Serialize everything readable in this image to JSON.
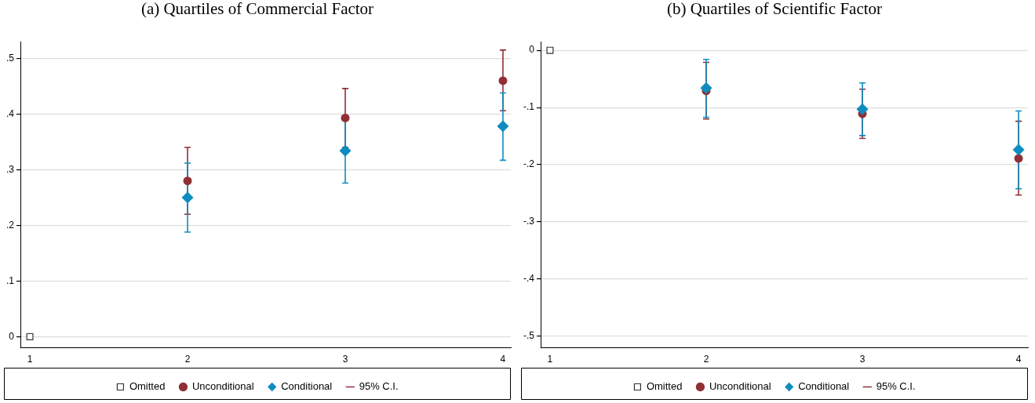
{
  "chart_data": [
    {
      "type": "scatter",
      "title": "(a) Quartiles of Commercial Factor",
      "xlim": [
        0.94,
        4.05
      ],
      "xticks": [
        1,
        2,
        3,
        4
      ],
      "ylim": [
        -0.02,
        0.53
      ],
      "yticks": [
        0,
        {
          "value": 0.1,
          "label": ".1"
        },
        {
          "value": 0.2,
          "label": ".2"
        },
        {
          "value": 0.3,
          "label": ".3"
        },
        {
          "value": 0.4,
          "label": ".4"
        },
        {
          "value": 0.5,
          "label": ".5"
        }
      ],
      "grid": "y",
      "legend": "bottom",
      "annotations": [
        "95% C.I."
      ],
      "series": [
        {
          "name": "Omitted",
          "color": "#333333",
          "marker": "square",
          "x": [
            1
          ],
          "values": [
            0
          ]
        },
        {
          "name": "Unconditional",
          "color": "#903036",
          "marker": "circle",
          "x": [
            2,
            3,
            4
          ],
          "values": [
            0.28,
            0.393,
            0.46
          ],
          "errors": [
            [
              0.22,
              0.34
            ],
            [
              0.34,
              0.446
            ],
            [
              0.406,
              0.515
            ]
          ]
        },
        {
          "name": "Conditional",
          "color": "#0f8cbf",
          "marker": "diamond",
          "x": [
            2,
            3,
            4
          ],
          "values": [
            0.25,
            0.334,
            0.378
          ],
          "errors": [
            [
              0.188,
              0.312
            ],
            [
              0.276,
              0.392
            ],
            [
              0.317,
              0.438
            ]
          ]
        }
      ]
    },
    {
      "type": "scatter",
      "title": "(b) Quartiles of Scientific Factor",
      "xlim": [
        0.94,
        4.06
      ],
      "xticks": [
        1,
        2,
        3,
        4
      ],
      "ylim": [
        -0.52,
        0.015
      ],
      "yticks": [
        0,
        {
          "value": -0.1,
          "label": "-.1"
        },
        {
          "value": -0.2,
          "label": "-.2"
        },
        {
          "value": -0.3,
          "label": "-.3"
        },
        {
          "value": -0.4,
          "label": "-.4"
        },
        {
          "value": -0.5,
          "label": "-.5"
        }
      ],
      "grid": "y",
      "legend": "bottom",
      "annotations": [
        "95% C.I."
      ],
      "series": [
        {
          "name": "Omitted",
          "color": "#333333",
          "marker": "square",
          "x": [
            1
          ],
          "values": [
            0
          ]
        },
        {
          "name": "Unconditional",
          "color": "#903036",
          "marker": "circle",
          "x": [
            2,
            3,
            4
          ],
          "values": [
            -0.071,
            -0.111,
            -0.189
          ],
          "errors": [
            [
              -0.12,
              -0.021
            ],
            [
              -0.154,
              -0.068
            ],
            [
              -0.253,
              -0.124
            ]
          ]
        },
        {
          "name": "Conditional",
          "color": "#0f8cbf",
          "marker": "diamond",
          "x": [
            2,
            3,
            4
          ],
          "values": [
            -0.066,
            -0.103,
            -0.174
          ],
          "errors": [
            [
              -0.117,
              -0.016
            ],
            [
              -0.149,
              -0.057
            ],
            [
              -0.242,
              -0.106
            ]
          ]
        }
      ]
    }
  ]
}
